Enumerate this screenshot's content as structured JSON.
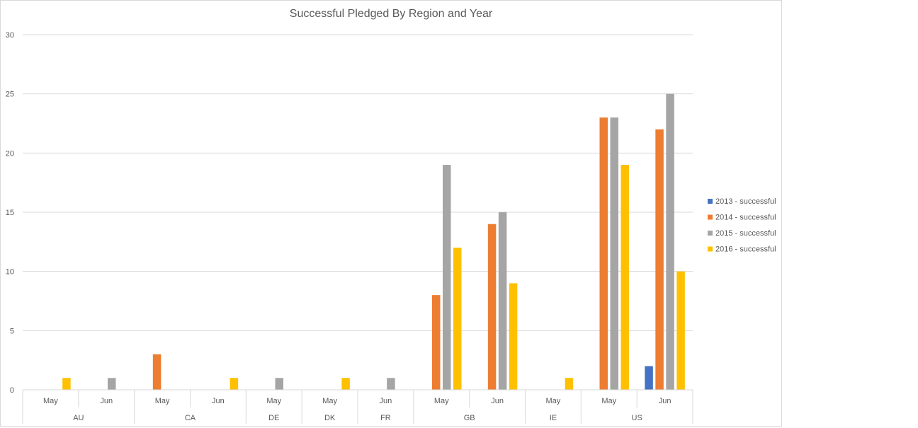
{
  "chart_data": {
    "type": "bar",
    "title": "Successful Pledged By Region and Year",
    "xlabel": "",
    "ylabel": "",
    "ylim": [
      0,
      30
    ],
    "yticks": [
      "0",
      "5",
      "10",
      "15",
      "20",
      "25",
      "30"
    ],
    "grid": true,
    "legend_position": "right",
    "groups": [
      {
        "region": "AU",
        "months": [
          "May",
          "Jun"
        ]
      },
      {
        "region": "CA",
        "months": [
          "May",
          "Jun"
        ]
      },
      {
        "region": "DE",
        "months": [
          "May"
        ]
      },
      {
        "region": "DK",
        "months": [
          "May"
        ]
      },
      {
        "region": "FR",
        "months": [
          "Jun"
        ]
      },
      {
        "region": "GB",
        "months": [
          "May",
          "Jun"
        ]
      },
      {
        "region": "IE",
        "months": [
          "May"
        ]
      },
      {
        "region": "US",
        "months": [
          "May",
          "Jun"
        ]
      }
    ],
    "categories": [
      "AU May",
      "AU Jun",
      "CA May",
      "CA Jun",
      "DE May",
      "DK May",
      "FR Jun",
      "GB May",
      "GB Jun",
      "IE May",
      "US May",
      "US Jun"
    ],
    "series": [
      {
        "name": "2013 - successful",
        "color": "#4472c4",
        "values": [
          null,
          null,
          null,
          null,
          null,
          null,
          null,
          null,
          null,
          null,
          null,
          2
        ]
      },
      {
        "name": "2014 - successful",
        "color": "#ed7d31",
        "values": [
          null,
          null,
          3,
          null,
          null,
          null,
          null,
          8,
          14,
          null,
          23,
          22
        ]
      },
      {
        "name": "2015 - successful",
        "color": "#a5a5a5",
        "values": [
          null,
          1,
          null,
          null,
          1,
          null,
          1,
          19,
          15,
          null,
          23,
          25
        ]
      },
      {
        "name": "2016 - successful",
        "color": "#ffc000",
        "values": [
          1,
          null,
          null,
          1,
          null,
          1,
          null,
          12,
          9,
          1,
          19,
          10
        ]
      }
    ]
  }
}
